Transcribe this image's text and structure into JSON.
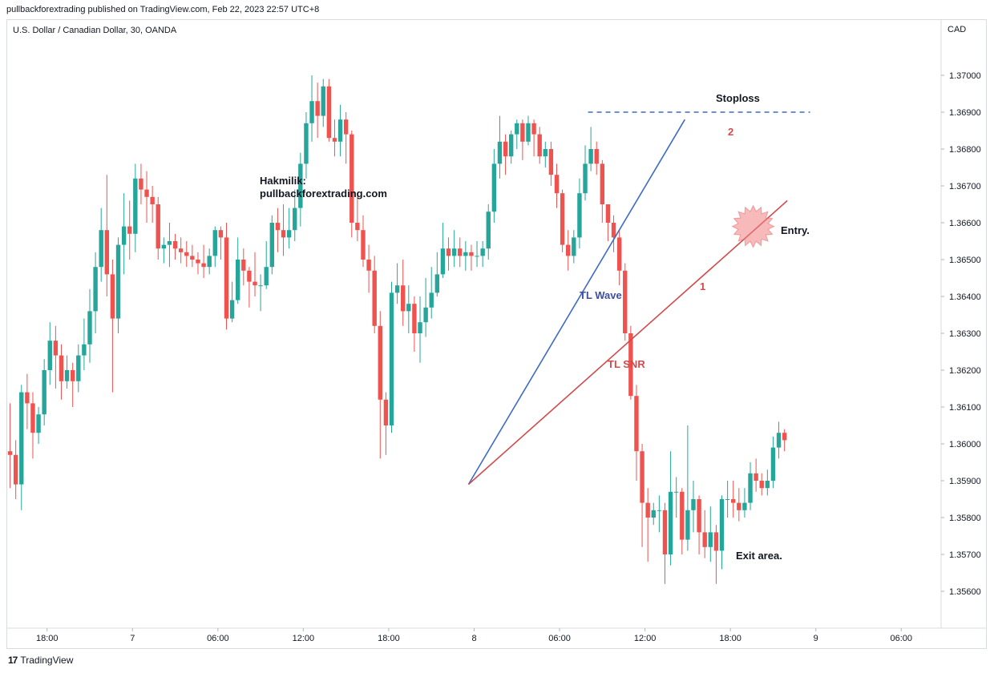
{
  "header": {
    "published": "pullbackforextrading published on TradingView.com, Feb 22, 2023 22:57 UTC+8",
    "symbol": "U.S. Dollar / Canadian Dollar, 30, OANDA",
    "footer_brand": "TradingView",
    "footer_logo": "17"
  },
  "colors": {
    "up": "#26a69a",
    "down": "#ef5350",
    "wave": "#3d6bc4",
    "snr": "#d14b4b",
    "grid": "#e6e6e6"
  },
  "chart_data": {
    "type": "candlestick",
    "currency_label": "CAD",
    "y_range": [
      1.355,
      1.3715
    ],
    "y_ticks": [
      "1.37000",
      "1.36900",
      "1.36800",
      "1.36700",
      "1.36600",
      "1.36500",
      "1.36400",
      "1.36300",
      "1.36200",
      "1.36100",
      "1.36000",
      "1.35900",
      "1.35800",
      "1.35700",
      "1.35600"
    ],
    "x_range": [
      0,
      164
    ],
    "x_ticks": [
      {
        "label": "18:00",
        "x": 7
      },
      {
        "label": "7",
        "x": 22
      },
      {
        "label": "06:00",
        "x": 37
      },
      {
        "label": "12:00",
        "x": 52
      },
      {
        "label": "18:00",
        "x": 67
      },
      {
        "label": "8",
        "x": 82
      },
      {
        "label": "06:00",
        "x": 97
      },
      {
        "label": "12:00",
        "x": 112
      },
      {
        "label": "18:00",
        "x": 127
      },
      {
        "label": "9",
        "x": 142
      },
      {
        "label": "06:00",
        "x": 157
      }
    ],
    "candles": [
      [
        1.3598,
        1.3597,
        1.3611,
        1.3588
      ],
      [
        1.3597,
        1.3589,
        1.3601,
        1.3585
      ],
      [
        1.3589,
        1.3614,
        1.3616,
        1.3582
      ],
      [
        1.3614,
        1.3611,
        1.3619,
        1.3604
      ],
      [
        1.3611,
        1.3603,
        1.3614,
        1.3596
      ],
      [
        1.3603,
        1.3608,
        1.361,
        1.36
      ],
      [
        1.3608,
        1.362,
        1.3623,
        1.3605
      ],
      [
        1.362,
        1.3628,
        1.3633,
        1.3616
      ],
      [
        1.3628,
        1.3624,
        1.3632,
        1.3615
      ],
      [
        1.3624,
        1.3617,
        1.3627,
        1.3612
      ],
      [
        1.3617,
        1.362,
        1.3624,
        1.3615
      ],
      [
        1.362,
        1.3617,
        1.3622,
        1.361
      ],
      [
        1.3617,
        1.3624,
        1.3627,
        1.3614
      ],
      [
        1.3624,
        1.3627,
        1.3634,
        1.362
      ],
      [
        1.3627,
        1.3636,
        1.3642,
        1.3622
      ],
      [
        1.3636,
        1.3648,
        1.3652,
        1.363
      ],
      [
        1.3648,
        1.3658,
        1.3664,
        1.3644
      ],
      [
        1.3658,
        1.3646,
        1.3673,
        1.364
      ],
      [
        1.3646,
        1.3634,
        1.365,
        1.3614
      ],
      [
        1.3634,
        1.3654,
        1.3656,
        1.363
      ],
      [
        1.3654,
        1.3659,
        1.3668,
        1.3646
      ],
      [
        1.3659,
        1.3657,
        1.3666,
        1.365
      ],
      [
        1.3657,
        1.3672,
        1.3676,
        1.3652
      ],
      [
        1.3672,
        1.3669,
        1.3676,
        1.3665
      ],
      [
        1.3669,
        1.3667,
        1.3674,
        1.366
      ],
      [
        1.3667,
        1.3665,
        1.367,
        1.366
      ],
      [
        1.3665,
        1.3653,
        1.3667,
        1.365
      ],
      [
        1.3653,
        1.3654,
        1.3656,
        1.3649
      ],
      [
        1.3654,
        1.3655,
        1.366,
        1.3648
      ],
      [
        1.3655,
        1.3653,
        1.3657,
        1.365
      ],
      [
        1.3653,
        1.3652,
        1.3656,
        1.3649
      ],
      [
        1.3652,
        1.3651,
        1.3655,
        1.3648
      ],
      [
        1.3651,
        1.365,
        1.3654,
        1.3648
      ],
      [
        1.365,
        1.3649,
        1.3652,
        1.3646
      ],
      [
        1.3649,
        1.3648,
        1.3654,
        1.3645
      ],
      [
        1.3648,
        1.3651,
        1.3653,
        1.3646
      ],
      [
        1.3651,
        1.3658,
        1.3659,
        1.3648
      ],
      [
        1.3658,
        1.3656,
        1.3659,
        1.365
      ],
      [
        1.3656,
        1.3634,
        1.366,
        1.3631
      ],
      [
        1.3634,
        1.3639,
        1.3644,
        1.3633
      ],
      [
        1.3639,
        1.365,
        1.3656,
        1.3638
      ],
      [
        1.365,
        1.3647,
        1.3653,
        1.3643
      ],
      [
        1.3647,
        1.3644,
        1.3648,
        1.3637
      ],
      [
        1.3644,
        1.3643,
        1.3652,
        1.364
      ],
      [
        1.3643,
        1.3643,
        1.3646,
        1.3636
      ],
      [
        1.3643,
        1.3648,
        1.3655,
        1.3642
      ],
      [
        1.3648,
        1.366,
        1.3662,
        1.3646
      ],
      [
        1.366,
        1.3658,
        1.3664,
        1.3652
      ],
      [
        1.3658,
        1.3656,
        1.3665,
        1.3651
      ],
      [
        1.3656,
        1.3658,
        1.3664,
        1.3653
      ],
      [
        1.3658,
        1.3664,
        1.3669,
        1.3655
      ],
      [
        1.3664,
        1.3676,
        1.3679,
        1.3659
      ],
      [
        1.3676,
        1.3687,
        1.369,
        1.3672
      ],
      [
        1.3687,
        1.3693,
        1.37,
        1.3682
      ],
      [
        1.3693,
        1.3689,
        1.3698,
        1.3683
      ],
      [
        1.3689,
        1.3697,
        1.3699,
        1.3686
      ],
      [
        1.3697,
        1.3683,
        1.3699,
        1.3682
      ],
      [
        1.3683,
        1.3682,
        1.3688,
        1.3678
      ],
      [
        1.3682,
        1.3688,
        1.3692,
        1.3678
      ],
      [
        1.3688,
        1.3684,
        1.369,
        1.3676
      ],
      [
        1.3684,
        1.366,
        1.3685,
        1.3656
      ],
      [
        1.366,
        1.3658,
        1.3668,
        1.3655
      ],
      [
        1.3658,
        1.365,
        1.3662,
        1.3648
      ],
      [
        1.365,
        1.3647,
        1.3654,
        1.3641
      ],
      [
        1.3647,
        1.3632,
        1.3651,
        1.363
      ],
      [
        1.3632,
        1.3612,
        1.3636,
        1.3596
      ],
      [
        1.3612,
        1.3605,
        1.3614,
        1.3597
      ],
      [
        1.3605,
        1.3641,
        1.3644,
        1.3603
      ],
      [
        1.3641,
        1.3643,
        1.3649,
        1.3638
      ],
      [
        1.3643,
        1.3636,
        1.365,
        1.3632
      ],
      [
        1.3636,
        1.3638,
        1.3643,
        1.363
      ],
      [
        1.3638,
        1.363,
        1.364,
        1.3625
      ],
      [
        1.363,
        1.3633,
        1.364,
        1.3622
      ],
      [
        1.3633,
        1.3637,
        1.3645,
        1.3629
      ],
      [
        1.3637,
        1.3641,
        1.3648,
        1.3634
      ],
      [
        1.3641,
        1.3646,
        1.3652,
        1.364
      ],
      [
        1.3646,
        1.3653,
        1.366,
        1.3645
      ],
      [
        1.3653,
        1.3651,
        1.3656,
        1.3647
      ],
      [
        1.3651,
        1.3653,
        1.3658,
        1.3648
      ],
      [
        1.3653,
        1.3651,
        1.3656,
        1.3648
      ],
      [
        1.3651,
        1.3652,
        1.3655,
        1.3647
      ],
      [
        1.3652,
        1.3651,
        1.3654,
        1.3647
      ],
      [
        1.3651,
        1.3651,
        1.3655,
        1.3648
      ],
      [
        1.3651,
        1.3653,
        1.3655,
        1.3648
      ],
      [
        1.3653,
        1.3663,
        1.3665,
        1.365
      ],
      [
        1.3663,
        1.3676,
        1.368,
        1.366
      ],
      [
        1.3676,
        1.3682,
        1.3689,
        1.3672
      ],
      [
        1.3682,
        1.3678,
        1.3684,
        1.3673
      ],
      [
        1.3678,
        1.3684,
        1.3685,
        1.3676
      ],
      [
        1.3684,
        1.3687,
        1.3688,
        1.368
      ],
      [
        1.3687,
        1.3682,
        1.3688,
        1.3677
      ],
      [
        1.3682,
        1.3687,
        1.3689,
        1.3681
      ],
      [
        1.3687,
        1.3684,
        1.3688,
        1.3678
      ],
      [
        1.3684,
        1.3678,
        1.3686,
        1.3676
      ],
      [
        1.3678,
        1.368,
        1.3682,
        1.3675
      ],
      [
        1.368,
        1.3673,
        1.3682,
        1.367
      ],
      [
        1.3673,
        1.3668,
        1.3676,
        1.3664
      ],
      [
        1.3668,
        1.3654,
        1.3669,
        1.3652
      ],
      [
        1.3654,
        1.3651,
        1.3658,
        1.3647
      ],
      [
        1.3651,
        1.3656,
        1.3658,
        1.3649
      ],
      [
        1.3656,
        1.3668,
        1.3672,
        1.3653
      ],
      [
        1.3668,
        1.3676,
        1.3681,
        1.3666
      ],
      [
        1.3676,
        1.368,
        1.3686,
        1.3674
      ],
      [
        1.368,
        1.3676,
        1.3682,
        1.3673
      ],
      [
        1.3676,
        1.3665,
        1.3677,
        1.366
      ],
      [
        1.3665,
        1.366,
        1.3662,
        1.3655
      ],
      [
        1.366,
        1.3656,
        1.3662,
        1.3652
      ],
      [
        1.3656,
        1.3647,
        1.3658,
        1.3643
      ],
      [
        1.3647,
        1.363,
        1.3649,
        1.3628
      ],
      [
        1.363,
        1.3613,
        1.3632,
        1.3612
      ],
      [
        1.3613,
        1.3598,
        1.3616,
        1.359
      ],
      [
        1.3598,
        1.3584,
        1.36,
        1.3572
      ],
      [
        1.3584,
        1.358,
        1.3588,
        1.3568
      ],
      [
        1.358,
        1.3582,
        1.3584,
        1.3578
      ],
      [
        1.3582,
        1.3582,
        1.3586,
        1.3576
      ],
      [
        1.3582,
        1.357,
        1.3584,
        1.3562
      ],
      [
        1.357,
        1.3587,
        1.3598,
        1.3567
      ],
      [
        1.3587,
        1.3587,
        1.3591,
        1.358
      ],
      [
        1.3587,
        1.3574,
        1.3588,
        1.357
      ],
      [
        1.3574,
        1.3582,
        1.3605,
        1.3571
      ],
      [
        1.3582,
        1.3585,
        1.359,
        1.3576
      ],
      [
        1.3585,
        1.3576,
        1.3586,
        1.357
      ],
      [
        1.3576,
        1.3572,
        1.3582,
        1.3569
      ],
      [
        1.3572,
        1.3576,
        1.3583,
        1.3568
      ],
      [
        1.3576,
        1.3571,
        1.3578,
        1.3562
      ],
      [
        1.3571,
        1.3585,
        1.3586,
        1.3566
      ],
      [
        1.3585,
        1.3585,
        1.359,
        1.358
      ],
      [
        1.3585,
        1.3584,
        1.359,
        1.358
      ],
      [
        1.3584,
        1.3582,
        1.3588,
        1.3579
      ],
      [
        1.3582,
        1.3584,
        1.3588,
        1.358
      ],
      [
        1.3584,
        1.3592,
        1.3595,
        1.3582
      ],
      [
        1.3592,
        1.359,
        1.3596,
        1.3587
      ],
      [
        1.359,
        1.3588,
        1.3592,
        1.3586
      ],
      [
        1.3588,
        1.359,
        1.3593,
        1.3586
      ],
      [
        1.359,
        1.3599,
        1.3602,
        1.3588
      ],
      [
        1.3599,
        1.3603,
        1.3606,
        1.3596
      ],
      [
        1.3603,
        1.3601,
        1.3604,
        1.3598
      ]
    ],
    "annotations": {
      "stoploss": "Stoploss",
      "watermark_line1": "Hakmilik:",
      "watermark_line2": "pullbackforextrading.com",
      "tl_wave": "TL Wave",
      "tl_snr": "TL SNR",
      "label_1": "1",
      "label_2": "2",
      "entry": "Entry.",
      "exit": "Exit area."
    },
    "lines": {
      "stoploss": {
        "x1": 102,
        "x2": 141,
        "y": 1.369
      },
      "tl_wave": {
        "x1": 81,
        "y1": 1.3589,
        "x2": 119,
        "y2": 1.3688
      },
      "tl_snr": {
        "x1": 81,
        "y1": 1.3589,
        "x2": 137,
        "y2": 1.3666
      },
      "entry_marker": {
        "x": 131,
        "y": 1.3659
      }
    }
  }
}
